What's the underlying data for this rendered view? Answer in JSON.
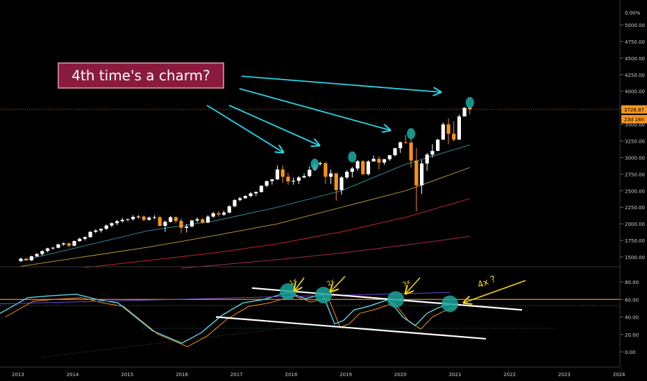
{
  "annotation": "4th time's a charm?",
  "price_axis": {
    "top_label": "0.00%",
    "ticks": [
      5000,
      4750,
      4500,
      4250,
      4000,
      3750,
      3500,
      3250,
      3000,
      2750,
      2500,
      2250,
      2000,
      1750,
      1500
    ],
    "tick_labels": [
      "5000.00",
      "4750.00",
      "4500.00",
      "4250.00",
      "4000.00",
      "3750.00",
      "3500.00",
      "3250.00",
      "3000.00",
      "2750.00",
      "2500.00",
      "2250.00",
      "2000.00",
      "1750.00",
      "1500.00"
    ],
    "current_price": "3726.87",
    "countdown": "23d 16h"
  },
  "rsi_axis": {
    "ticks": [
      80,
      60,
      40,
      20,
      0
    ],
    "tick_labels": [
      "80.00",
      "60.00",
      "40.00",
      "20.00",
      "0.00"
    ]
  },
  "x_axis": {
    "years": [
      "2013",
      "2014",
      "2015",
      "2016",
      "2017",
      "2018",
      "2019",
      "2020",
      "2021",
      "2022",
      "2023",
      "2024"
    ]
  },
  "rsi_notes": [
    "1x",
    "2x",
    "3x",
    "4x ?"
  ],
  "colors": {
    "up": "#ffffff",
    "down": "#f7931a",
    "arrow": "#26d7e8",
    "marker": "#1aa39a",
    "rsi": "#5fd5e6",
    "signal": "#f7931a",
    "ma_slow": "#6e4bd8",
    "trendline": "#ffffff",
    "ref_line": "#f28b2c",
    "note": "#f5d90c",
    "ma1": "#2f8fa0",
    "ma2": "#b6952d",
    "ma3": "#c2262e",
    "ma4": "#a82a45"
  },
  "chart_data": {
    "type": "candlestick",
    "x_unit": "month",
    "ylim": [
      1400,
      5250
    ],
    "candles": [
      [
        1440,
        1490,
        1420,
        1475
      ],
      [
        1475,
        1485,
        1440,
        1450
      ],
      [
        1450,
        1520,
        1440,
        1510
      ],
      [
        1510,
        1560,
        1500,
        1545
      ],
      [
        1545,
        1600,
        1520,
        1590
      ],
      [
        1590,
        1640,
        1570,
        1630
      ],
      [
        1630,
        1650,
        1610,
        1640
      ],
      [
        1640,
        1700,
        1630,
        1690
      ],
      [
        1690,
        1720,
        1670,
        1705
      ],
      [
        1705,
        1720,
        1650,
        1670
      ],
      [
        1670,
        1750,
        1660,
        1740
      ],
      [
        1740,
        1790,
        1730,
        1775
      ],
      [
        1775,
        1810,
        1750,
        1800
      ],
      [
        1800,
        1890,
        1790,
        1880
      ],
      [
        1880,
        1920,
        1860,
        1900
      ],
      [
        1900,
        1930,
        1870,
        1925
      ],
      [
        1925,
        1990,
        1910,
        1975
      ],
      [
        1975,
        2020,
        1950,
        2010
      ],
      [
        2010,
        2060,
        1980,
        2040
      ],
      [
        2040,
        2090,
        2020,
        2060
      ],
      [
        2060,
        2080,
        2040,
        2070
      ],
      [
        2070,
        2130,
        2050,
        2105
      ],
      [
        2105,
        2130,
        2080,
        2110
      ],
      [
        2110,
        2125,
        2040,
        2060
      ],
      [
        2060,
        2110,
        2050,
        2095
      ],
      [
        2095,
        2130,
        2070,
        2100
      ],
      [
        2100,
        2120,
        1960,
        1970
      ],
      [
        1970,
        2050,
        1880,
        2030
      ],
      [
        2030,
        2120,
        2020,
        2100
      ],
      [
        2100,
        2110,
        2010,
        2045
      ],
      [
        2045,
        2080,
        1860,
        1940
      ],
      [
        1940,
        2000,
        1870,
        1960
      ],
      [
        1960,
        2060,
        1950,
        2050
      ],
      [
        2050,
        2100,
        2020,
        2070
      ],
      [
        2070,
        2090,
        2000,
        2020
      ],
      [
        2020,
        2130,
        2010,
        2110
      ],
      [
        2110,
        2180,
        2090,
        2160
      ],
      [
        2160,
        2190,
        2110,
        2140
      ],
      [
        2140,
        2200,
        2120,
        2170
      ],
      [
        2170,
        2280,
        2160,
        2265
      ],
      [
        2265,
        2370,
        2250,
        2360
      ],
      [
        2360,
        2410,
        2340,
        2385
      ],
      [
        2385,
        2430,
        2380,
        2420
      ],
      [
        2420,
        2480,
        2400,
        2460
      ],
      [
        2460,
        2490,
        2420,
        2480
      ],
      [
        2480,
        2580,
        2470,
        2575
      ],
      [
        2575,
        2650,
        2550,
        2645
      ],
      [
        2645,
        2680,
        2590,
        2670
      ],
      [
        2670,
        2880,
        2660,
        2820
      ],
      [
        2820,
        2880,
        2620,
        2710
      ],
      [
        2710,
        2770,
        2590,
        2640
      ],
      [
        2640,
        2700,
        2590,
        2650
      ],
      [
        2650,
        2720,
        2600,
        2700
      ],
      [
        2700,
        2760,
        2690,
        2720
      ],
      [
        2720,
        2870,
        2700,
        2815
      ],
      [
        2815,
        2930,
        2800,
        2900
      ],
      [
        2900,
        2940,
        2880,
        2915
      ],
      [
        2915,
        2930,
        2600,
        2710
      ],
      [
        2710,
        2820,
        2600,
        2760
      ],
      [
        2760,
        2770,
        2350,
        2510
      ],
      [
        2510,
        2720,
        2440,
        2700
      ],
      [
        2700,
        2810,
        2680,
        2785
      ],
      [
        2785,
        2860,
        2700,
        2835
      ],
      [
        2835,
        2960,
        2800,
        2945
      ],
      [
        2945,
        2960,
        2730,
        2750
      ],
      [
        2750,
        2960,
        2730,
        2940
      ],
      [
        2940,
        3030,
        2940,
        2980
      ],
      [
        2980,
        3020,
        2820,
        2925
      ],
      [
        2925,
        2980,
        2890,
        2975
      ],
      [
        2975,
        3040,
        2950,
        3035
      ],
      [
        3035,
        3150,
        3020,
        3140
      ],
      [
        3140,
        3240,
        3070,
        3230
      ],
      [
        3230,
        3340,
        3210,
        3225
      ],
      [
        3225,
        3400,
        2850,
        2955
      ],
      [
        2955,
        3140,
        2190,
        2580
      ],
      [
        2580,
        2960,
        2450,
        2910
      ],
      [
        2910,
        3070,
        2800,
        3045
      ],
      [
        3045,
        3200,
        3000,
        3100
      ],
      [
        3100,
        3280,
        3100,
        3270
      ],
      [
        3270,
        3530,
        3270,
        3500
      ],
      [
        3500,
        3590,
        3200,
        3360
      ],
      [
        3360,
        3550,
        3240,
        3270
      ],
      [
        3270,
        3650,
        3280,
        3620
      ],
      [
        3620,
        3760,
        3630,
        3750
      ],
      [
        3760,
        3780,
        3650,
        3726
      ]
    ],
    "moving_averages": [
      {
        "name": "MA1",
        "values_start_end": [
          1440,
          3190
        ]
      },
      {
        "name": "MA2",
        "values_start_end": [
          1400,
          2850
        ]
      },
      {
        "name": "MA3",
        "values_start_end": [
          1350,
          2380
        ]
      },
      {
        "name": "MA4",
        "values_start_end": [
          1300,
          1810
        ]
      }
    ],
    "rsi_ylim": [
      -10,
      95
    ],
    "rsi_ref_levels": [
      60,
      53
    ],
    "rsi_peaks": [
      {
        "label": "1x",
        "value": 69
      },
      {
        "label": "2x",
        "value": 65
      },
      {
        "label": "3x",
        "value": 60
      },
      {
        "label": "4x ?",
        "value": 55
      }
    ]
  }
}
